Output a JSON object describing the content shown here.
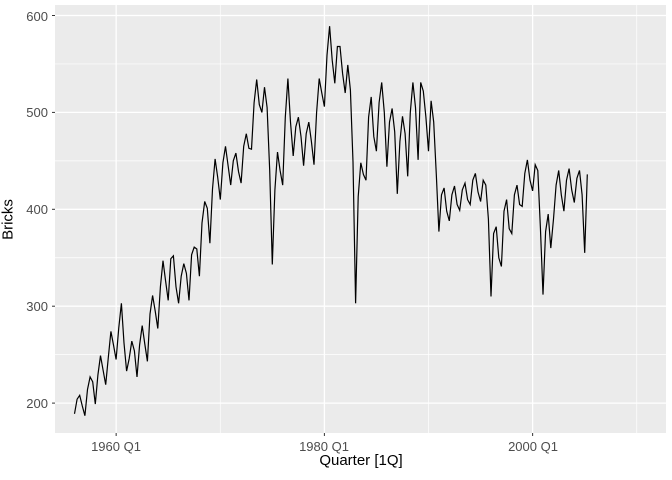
{
  "figure": {
    "background_color": "#FFFFFF",
    "panel_color": "#EBEBEB",
    "gridline_color": "#FFFFFF",
    "line_color": "#000000",
    "axis_text_color": "#4D4D4D",
    "tick_mark_color": "#333333"
  },
  "axes": {
    "x_title": "Quarter [1Q]",
    "y_title": "Bricks"
  },
  "chart_data": {
    "type": "line",
    "title": "",
    "xlabel": "Quarter [1Q]",
    "ylabel": "Bricks",
    "legend": "none",
    "grid": "on",
    "x_start": "1956 Q1",
    "x_end": "2005 Q2",
    "x_frequency": "quarterly",
    "x_tick_labels": [
      "1960 Q1",
      "1980 Q1",
      "2000 Q1"
    ],
    "x_tick_quarter_index": [
      16,
      96,
      176
    ],
    "x_minor_quarter_index": [
      56,
      136,
      216
    ],
    "y_tick_labels": [
      "200",
      "300",
      "400",
      "500",
      "600"
    ],
    "y_ticks": [
      200,
      300,
      400,
      500,
      600
    ],
    "y_minor_ticks": [
      250,
      350,
      450,
      550
    ],
    "ylim": [
      169,
      611
    ],
    "xlim_quarter_index": [
      -7.5,
      227.5
    ],
    "series": [
      {
        "name": "Bricks",
        "start": "1956 Q1",
        "values": [
          189,
          204,
          208,
          197,
          187,
          214,
          227,
          222,
          199,
          229,
          249,
          234,
          219,
          247,
          274,
          260,
          245,
          278,
          303,
          262,
          233,
          246,
          264,
          254,
          227,
          260,
          280,
          261,
          243,
          292,
          311,
          295,
          277,
          320,
          347,
          326,
          306,
          349,
          352,
          320,
          303,
          331,
          344,
          334,
          306,
          353,
          361,
          359,
          331,
          386,
          408,
          401,
          365,
          421,
          452,
          433,
          410,
          448,
          465,
          445,
          425,
          450,
          458,
          439,
          427,
          465,
          478,
          463,
          462,
          510,
          534,
          508,
          500,
          526,
          505,
          440,
          343,
          420,
          459,
          440,
          425,
          495,
          535,
          490,
          455,
          485,
          495,
          475,
          445,
          478,
          490,
          470,
          446,
          500,
          535,
          520,
          506,
          559,
          589,
          554,
          530,
          568,
          568,
          540,
          520,
          549,
          523,
          449,
          303,
          413,
          448,
          436,
          430,
          495,
          516,
          475,
          460,
          510,
          531,
          500,
          444,
          490,
          504,
          480,
          416,
          470,
          496,
          478,
          434,
          500,
          531,
          505,
          451,
          531,
          522,
          495,
          460,
          512,
          490,
          436,
          377,
          415,
          422,
          398,
          388,
          415,
          424,
          405,
          399,
          420,
          427,
          410,
          405,
          430,
          437,
          418,
          408,
          430,
          425,
          390,
          310,
          375,
          382,
          350,
          341,
          398,
          410,
          380,
          375,
          415,
          425,
          405,
          403,
          437,
          451,
          430,
          419,
          446,
          440,
          381,
          312,
          377,
          395,
          360,
          390,
          425,
          440,
          415,
          398,
          430,
          442,
          420,
          407,
          432,
          440,
          415,
          355,
          436
        ]
      }
    ]
  }
}
